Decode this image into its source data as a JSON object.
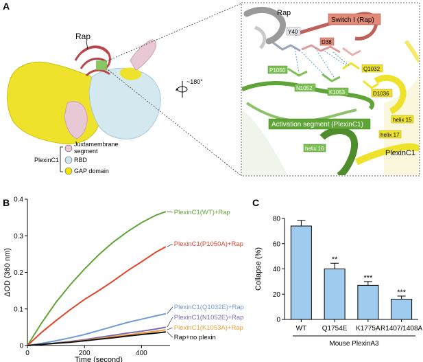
{
  "panels": {
    "a": {
      "letter": "A",
      "overview": {
        "rap_label": "Rap",
        "rotation_label": "~180°",
        "legend_group": "PlexinC1",
        "legend_items": [
          {
            "label_lines": [
              "Juxtamembrane",
              "segment"
            ],
            "color": "#e8c8d4"
          },
          {
            "label_lines": [
              "RBD"
            ],
            "color": "#cfe4ee"
          },
          {
            "label_lines": [
              "GAP domain"
            ],
            "color": "#f2e600"
          }
        ]
      },
      "closeup": {
        "rap": "Rap",
        "switch_i": "Switch I (Rap)",
        "y40": "Y40",
        "d38": "D38",
        "p1050": "P1050",
        "q1032": "Q1032",
        "n1052": "N1052",
        "k1053": "K1053",
        "d1036": "D1036",
        "activation": "Activation segment (PlexinC1)",
        "helix15": "helix 15",
        "helix17": "helix 17",
        "helix16": "helix 16",
        "plexinc1": "PlexinC1"
      }
    },
    "b": {
      "letter": "B"
    },
    "c": {
      "letter": "C"
    }
  },
  "chart_data": [
    {
      "type": "line",
      "panel": "B",
      "xlabel": "Time (second)",
      "ylabel": "ΔOD (360 nm)",
      "xlim": [
        0,
        500
      ],
      "ylim": [
        0,
        0.4
      ],
      "xticks": [
        0,
        200,
        400
      ],
      "yticks": [
        0,
        0.1,
        0.2,
        0.3,
        0.4
      ],
      "x": [
        0,
        50,
        100,
        150,
        200,
        250,
        300,
        350,
        400,
        450,
        485
      ],
      "series": [
        {
          "name": "PlexinC1(WT)+Rap",
          "color": "#5fa436",
          "values": [
            0,
            0.062,
            0.118,
            0.166,
            0.209,
            0.248,
            0.282,
            0.311,
            0.336,
            0.356,
            0.366
          ]
        },
        {
          "name": "PlexinC1(P1050A)+Rap",
          "color": "#e0452a",
          "values": [
            0,
            0.036,
            0.068,
            0.098,
            0.126,
            0.15,
            0.176,
            0.204,
            0.229,
            0.255,
            0.27
          ]
        },
        {
          "name": "PlexinC1(Q1032E)+Rap",
          "color": "#6f9bd5",
          "values": [
            0,
            0.006,
            0.013,
            0.021,
            0.03,
            0.041,
            0.052,
            0.063,
            0.072,
            0.081,
            0.087
          ]
        },
        {
          "name": "PlexinC1(N1052E)+Rap",
          "color": "#7b6cb3",
          "values": [
            0,
            0.003,
            0.007,
            0.011,
            0.016,
            0.022,
            0.028,
            0.034,
            0.039,
            0.045,
            0.05
          ]
        },
        {
          "name": "PlexinC1(K1053A)+Rap",
          "color": "#f0a03c",
          "values": [
            0,
            0.003,
            0.006,
            0.01,
            0.014,
            0.019,
            0.024,
            0.029,
            0.034,
            0.039,
            0.043
          ]
        },
        {
          "name": "Rap+no plexin",
          "color": "#111111",
          "values": [
            0,
            0.003,
            0.006,
            0.009,
            0.013,
            0.017,
            0.021,
            0.026,
            0.03,
            0.034,
            0.037
          ]
        }
      ]
    },
    {
      "type": "bar",
      "panel": "C",
      "ylabel": "Collapse (%)",
      "xlabel": "Mouse PlexinA3",
      "ylim": [
        0,
        80
      ],
      "yticks": [
        0,
        20,
        40,
        60,
        80
      ],
      "bar_color": "#9fcbef",
      "categories": [
        "WT",
        "Q1754E",
        "K1775A",
        "R1407/1408A"
      ],
      "values": [
        74,
        40,
        27,
        16
      ],
      "errors": [
        4.5,
        4.5,
        3,
        2.5
      ],
      "significance": [
        "",
        "**",
        "***",
        "***"
      ]
    }
  ]
}
